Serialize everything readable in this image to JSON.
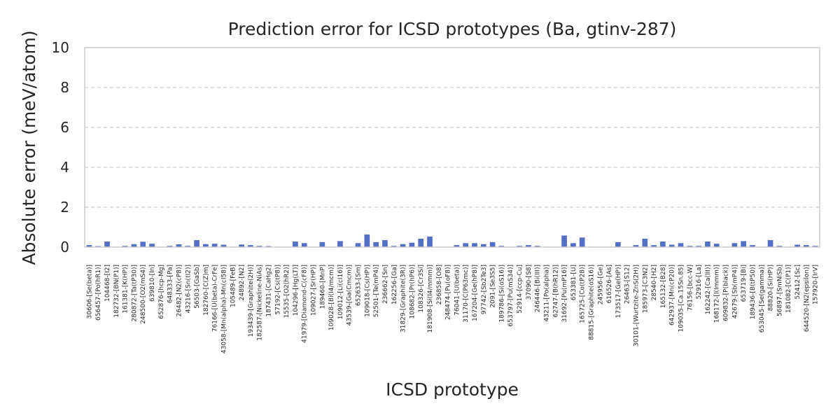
{
  "chart_data": {
    "type": "bar",
    "title": "Prediction error for ICSD prototypes (Ba, gtinv-287)",
    "xlabel": "ICSD prototype",
    "ylabel": "Absolute error (meV/atom)",
    "ylim": [
      0,
      10
    ],
    "yticks": [
      0,
      2,
      4,
      6,
      8,
      10
    ],
    "grid": "y-dashed",
    "bar_color": "#5470c6",
    "categories": [
      "30606-[Se(beta)]",
      "656457-[Po(hR1)]",
      "104468-[I2]",
      "182732-[BN(P1)]",
      "161381-[K(HP)]",
      "280872-[Ta(tP30)]",
      "248500-[O2(mS4)]",
      "639810-[In]",
      "652876-[hcp-Mg]",
      "648333-[Pa]",
      "26482-[N2(cP8)]",
      "43216-[Sn(tI2)]",
      "56503-[GaSb]",
      "182760-[C(Z)m]",
      "76166-[U(beta)-CrFe]",
      "43058-[Mn(alpha)-Mn(cI58)]",
      "105489-[FeB]",
      "24892-[N2]",
      "193439-[Graphite(2H)]",
      "182587-[Nickeline-NiAs]",
      "187431-[CaHg2]",
      "57192-[Cs(tP8)]",
      "15535-[O2(hR2)]",
      "104296-[Hg(LT)]",
      "41979-[Diamond-C(cF8)]",
      "109027-[Sr(HP)]",
      "189460-[MnP]",
      "109028-[Bi(I4/mcm)]",
      "109012-[Li(cI16)]",
      "43539-[Ga(Cmcm)]",
      "652633-[Sm]",
      "109018-[Cs(HP)]",
      "52501-[Te(mP4)]",
      "236662-[Sn]",
      "162256-[Ga]",
      "31829-[Graphite(3R)]",
      "108682-[Pr(hP6)]",
      "108326-[Cr3Si]",
      "181908-[Si(I4/mmm)]",
      "236858-[O8]",
      "248474-[Pu(oF8)]",
      "76041-[U(beta)]",
      "31170-[C(P63mc)]",
      "167204-[Ge(hP8)]",
      "97742-[Sb2Te3]",
      "2091-[Se3S5]",
      "189786-[Si(oS16)]",
      "653797-[Pu(mS34)]",
      "52914-[ccp-Cu]",
      "37090-[S8]",
      "246446-[Bi(III)]",
      "43211-[Po(alpha)]",
      "62747-[B(hR12)]",
      "31692-[Pu(mP16)]",
      "653381-[U]",
      "165725-[Co(tP28)]",
      "88815-[Graphite(oS16)]",
      "245956-[Ge]",
      "616526-[As]",
      "173517-[Ge(HP)]",
      "26463-[S12]",
      "30101-[Wurtzite-ZnS(2H)]",
      "185973-[C3N2]",
      "28540-[H2]",
      "165132-[B28]",
      "642937-[Mn(cP20)]",
      "109035-[Ca.15Sn.85]",
      "76156-[bcc-W]",
      "52916-[La]",
      "162242-[Ca(III)]",
      "168172-[I(Immm)]",
      "609832-[P(black)]",
      "42679-[Sb(mP4)]",
      "653719-[Bi]",
      "189436-[B(tP50)]",
      "653045-[Se(gamma)]",
      "88820-[Si(HP)]",
      "56897-[SmNiSb]",
      "181082-[C(P1)]",
      "52412-[Sc]",
      "644520-[N2(epsilon)]",
      "157920-[IrV]"
    ],
    "values": [
      0.1,
      0.05,
      0.28,
      0.02,
      0.06,
      0.15,
      0.27,
      0.17,
      0.02,
      0.06,
      0.14,
      0.06,
      0.35,
      0.15,
      0.17,
      0.12,
      0.02,
      0.13,
      0.1,
      0.06,
      0.05,
      0.02,
      0.02,
      0.28,
      0.2,
      0.02,
      0.25,
      0.02,
      0.3,
      0.02,
      0.2,
      0.63,
      0.25,
      0.35,
      0.06,
      0.15,
      0.22,
      0.42,
      0.53,
      0.02,
      0.02,
      0.1,
      0.2,
      0.2,
      0.15,
      0.25,
      0.06,
      0.02,
      0.06,
      0.1,
      0.06,
      0.02,
      0.02,
      0.58,
      0.2,
      0.48,
      0.02,
      0.02,
      0.02,
      0.25,
      0.02,
      0.1,
      0.42,
      0.1,
      0.28,
      0.12,
      0.2,
      0.06,
      0.06,
      0.28,
      0.17,
      0.02,
      0.2,
      0.3,
      0.1,
      0.02,
      0.35,
      0.06,
      0.02,
      0.12,
      0.1,
      0.06
    ]
  }
}
